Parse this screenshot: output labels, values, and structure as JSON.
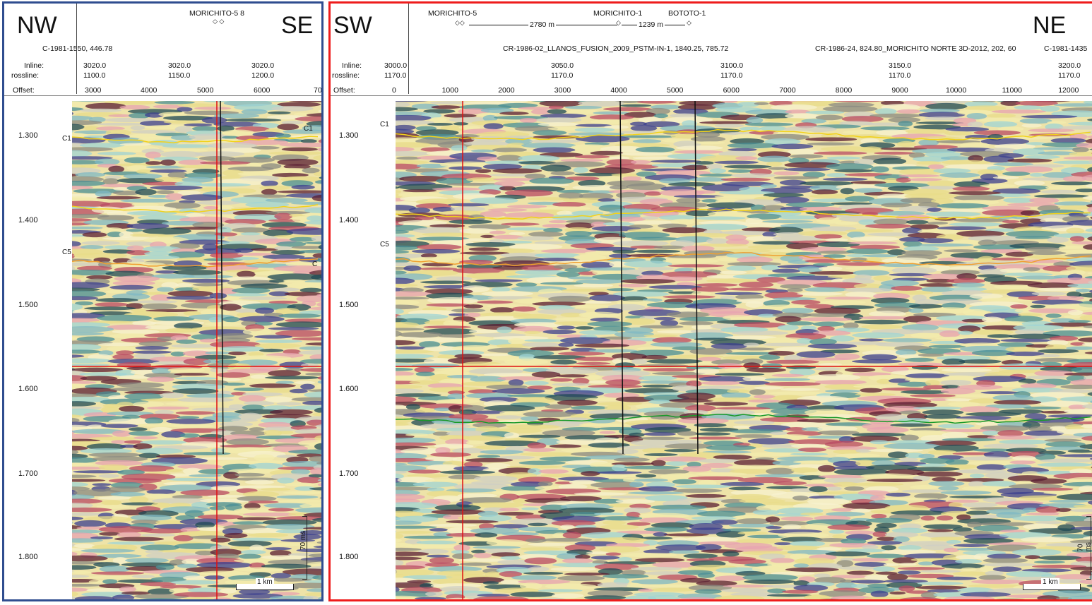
{
  "left": {
    "dir_left": "NW",
    "dir_right": "SE",
    "well_labels": "MORICHITO-5 8",
    "well_line": "C-1981-1550, 446.78",
    "rows": {
      "inline": "Inline:",
      "crossline": "rossline:",
      "offset": "Offset:"
    },
    "cols": [
      {
        "inline": "3020.0",
        "crossline": "1100.0"
      },
      {
        "inline": "3020.0",
        "crossline": "1150.0"
      },
      {
        "inline": "3020.0",
        "crossline": "1200.0"
      }
    ],
    "offsets": [
      "3000",
      "4000",
      "5000",
      "6000",
      "70"
    ],
    "times": [
      "1.300",
      "1.400",
      "1.500",
      "1.600",
      "1.700",
      "1.800"
    ],
    "horizons": [
      "C1",
      "C5",
      "C1",
      "C"
    ],
    "scale_time": "70 ms",
    "scale_dist": "1 km"
  },
  "right": {
    "dir_left": "SW",
    "dir_right": "NE",
    "wells_left": "MORICHITO-5",
    "dist1": "2780 m",
    "well_mid": "MORICHITO-1",
    "dist2": "1239 m",
    "well_right": "BOTOTO-1",
    "line1": "CR-1986-02_LLANOS_FUSION_2009_PSTM-IN-1, 1840.25, 785.72",
    "line2": "CR-1986-24, 824.80_MORICHITO NORTE 3D-2012, 202, 60",
    "line3": "C-1981-1435",
    "rows": {
      "inline": "Inline:",
      "crossline": "rossline:",
      "offset": "Offset:"
    },
    "cols": [
      {
        "inline": "3000.0",
        "crossline": "1170.0"
      },
      {
        "inline": "3050.0",
        "crossline": "1170.0"
      },
      {
        "inline": "3100.0",
        "crossline": "1170.0"
      },
      {
        "inline": "3150.0",
        "crossline": "1170.0"
      },
      {
        "inline": "3200.0",
        "crossline": "1170.0"
      }
    ],
    "offsets": [
      "0",
      "1000",
      "2000",
      "3000",
      "4000",
      "5000",
      "6000",
      "7000",
      "8000",
      "9000",
      "10000",
      "11000",
      "12000"
    ],
    "times": [
      "1.300",
      "1.400",
      "1.500",
      "1.600",
      "1.700",
      "1.800"
    ],
    "horizons": [
      "C1",
      "C5"
    ],
    "scale_time": "70 ms",
    "scale_dist": "1 km"
  },
  "colors": {
    "left_border": "#2f4d8f",
    "right_border": "#ee1c1c",
    "horizon_c1": "#f2d21b",
    "horizon_c5": "#f0a030",
    "horizon_green": "#1a9a2a",
    "cursor": "#e01010"
  }
}
